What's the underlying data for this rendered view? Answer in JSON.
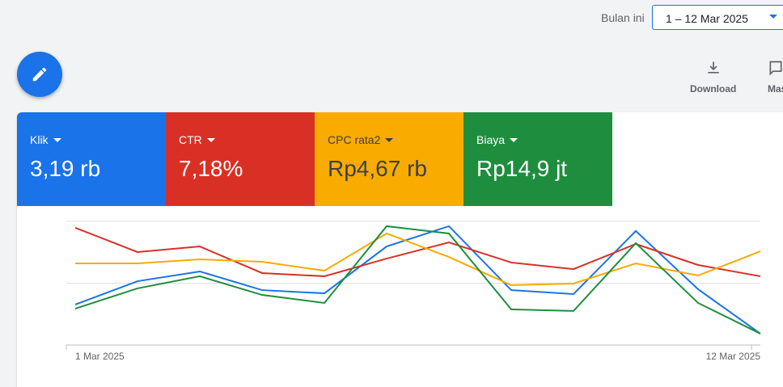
{
  "header": {
    "range_label": "Bulan ini",
    "range": "1 – 12 Mar 2025"
  },
  "toolbar": {
    "download": "Download",
    "more": "Mas"
  },
  "metrics": [
    {
      "name": "Klik",
      "value": "3,19 rb"
    },
    {
      "name": "CTR",
      "value": "7,18%"
    },
    {
      "name": "CPC rata2",
      "value": "Rp4,67 rb"
    },
    {
      "name": "Biaya",
      "value": "Rp14,9 jt"
    }
  ],
  "chart_data": {
    "type": "line",
    "x": [
      "1 Mar 2025",
      null,
      null,
      null,
      null,
      null,
      null,
      null,
      null,
      null,
      null,
      "12 Mar 2025"
    ],
    "ylim": [
      0,
      100
    ],
    "grid": true,
    "series": [
      {
        "color": "#1a73e8",
        "values": [
          32.7,
          51.6,
          59.5,
          44.4,
          41.8,
          79.7,
          96.1,
          44.4,
          41.2,
          92.2,
          45.1,
          9.2
        ]
      },
      {
        "color": "#d93025",
        "values": [
          94.8,
          75.2,
          79.7,
          58.2,
          55.6,
          69.9,
          83.0,
          66.7,
          61.4,
          81.7,
          64.7,
          55.6
        ]
      },
      {
        "color": "#f9ab00",
        "values": [
          66.0,
          66.0,
          69.3,
          67.3,
          60.1,
          90.2,
          71.2,
          48.4,
          49.7,
          66.0,
          56.2,
          75.8
        ]
      },
      {
        "color": "#1e8e3e",
        "values": [
          29.4,
          45.8,
          55.6,
          40.5,
          34.0,
          96.1,
          90.2,
          28.8,
          27.5,
          82.4,
          34.0,
          9.2
        ]
      }
    ]
  }
}
